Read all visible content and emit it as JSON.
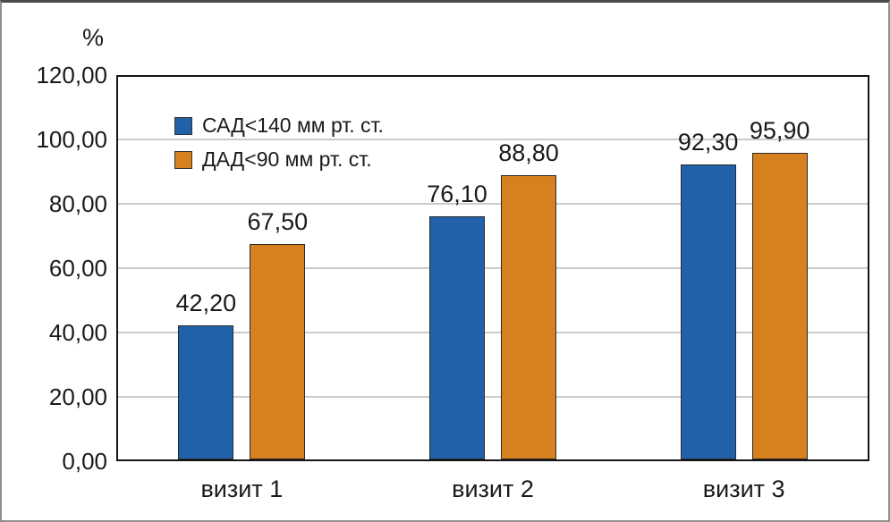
{
  "window": {
    "background": "#ffffff",
    "frame_color": "#8f8f8f"
  },
  "chart_data": {
    "type": "bar",
    "title": "",
    "xlabel": "",
    "ylabel": "%",
    "categories": [
      "визит 1",
      "визит 2",
      "визит 3"
    ],
    "series": [
      {
        "name": "САД<140 мм рт. ст.",
        "color": "#2161A9",
        "values": [
          42.2,
          76.1,
          92.3
        ],
        "value_labels": [
          "42,20",
          "76,10",
          "92,30"
        ]
      },
      {
        "name": "ДАД<90 мм рт. ст.",
        "color": "#D6801F",
        "values": [
          67.5,
          88.8,
          95.9
        ],
        "value_labels": [
          "67,50",
          "88,80",
          "95,90"
        ]
      }
    ],
    "ylim": [
      0,
      120
    ],
    "ytick_step": 20,
    "ytick_labels": [
      "0,00",
      "20,00",
      "40,00",
      "60,00",
      "80,00",
      "100,00",
      "120,00"
    ],
    "grid": true,
    "gridline_color": "#cbcbcb",
    "legend_position": "top-left-inside"
  }
}
